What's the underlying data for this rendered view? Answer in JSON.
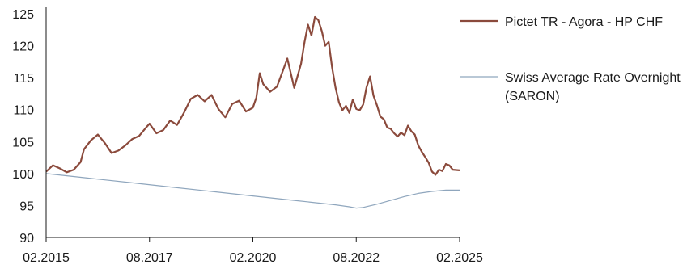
{
  "chart_data": {
    "type": "line",
    "x_axis": {
      "tick_labels": [
        "02.2015",
        "08.2017",
        "02.2020",
        "08.2022",
        "02.2025"
      ],
      "tick_dates": [
        "2015-02",
        "2017-08",
        "2020-02",
        "2022-08",
        "2025-02"
      ],
      "range": [
        "2015-02",
        "2025-02"
      ]
    },
    "y_axis": {
      "ticks": [
        90,
        95,
        100,
        105,
        110,
        115,
        120,
        125
      ],
      "ylim": [
        90,
        125
      ]
    },
    "grid": false,
    "legend_position": "right",
    "series": [
      {
        "name": "Pictet TR - Agora - HP CHF",
        "color": "#8B4A3C",
        "points": [
          [
            "2015-02",
            100.3
          ],
          [
            "2015-04",
            101.3
          ],
          [
            "2015-06",
            100.8
          ],
          [
            "2015-08",
            100.2
          ],
          [
            "2015-10",
            100.6
          ],
          [
            "2015-12",
            101.8
          ],
          [
            "2016-01",
            103.8
          ],
          [
            "2016-03",
            105.2
          ],
          [
            "2016-05",
            106.1
          ],
          [
            "2016-07",
            104.8
          ],
          [
            "2016-09",
            103.2
          ],
          [
            "2016-11",
            103.6
          ],
          [
            "2017-01",
            104.4
          ],
          [
            "2017-03",
            105.4
          ],
          [
            "2017-05",
            105.9
          ],
          [
            "2017-07",
            107.2
          ],
          [
            "2017-08",
            107.8
          ],
          [
            "2017-10",
            106.3
          ],
          [
            "2017-12",
            106.8
          ],
          [
            "2018-02",
            108.3
          ],
          [
            "2018-04",
            107.6
          ],
          [
            "2018-06",
            109.5
          ],
          [
            "2018-08",
            111.7
          ],
          [
            "2018-10",
            112.3
          ],
          [
            "2018-12",
            111.3
          ],
          [
            "2019-02",
            112.3
          ],
          [
            "2019-04",
            110.1
          ],
          [
            "2019-06",
            108.8
          ],
          [
            "2019-08",
            110.9
          ],
          [
            "2019-10",
            111.4
          ],
          [
            "2019-12",
            109.7
          ],
          [
            "2020-02",
            110.3
          ],
          [
            "2020-03",
            111.9
          ],
          [
            "2020-04",
            115.7
          ],
          [
            "2020-05",
            114.0
          ],
          [
            "2020-07",
            112.8
          ],
          [
            "2020-09",
            113.6
          ],
          [
            "2020-11",
            116.5
          ],
          [
            "2020-12",
            118.0
          ],
          [
            "2021-02",
            113.4
          ],
          [
            "2021-04",
            117.2
          ],
          [
            "2021-05",
            120.6
          ],
          [
            "2021-06",
            123.3
          ],
          [
            "2021-07",
            121.6
          ],
          [
            "2021-08",
            124.5
          ],
          [
            "2021-09",
            124.0
          ],
          [
            "2021-10",
            122.3
          ],
          [
            "2021-11",
            120.0
          ],
          [
            "2021-12",
            120.6
          ],
          [
            "2022-01",
            116.6
          ],
          [
            "2022-02",
            113.4
          ],
          [
            "2022-03",
            111.1
          ],
          [
            "2022-04",
            109.9
          ],
          [
            "2022-05",
            110.6
          ],
          [
            "2022-06",
            109.5
          ],
          [
            "2022-07",
            111.6
          ],
          [
            "2022-08",
            110.1
          ],
          [
            "2022-09",
            109.9
          ],
          [
            "2022-10",
            110.8
          ],
          [
            "2022-11",
            113.5
          ],
          [
            "2022-12",
            115.2
          ],
          [
            "2023-01",
            112.2
          ],
          [
            "2023-02",
            110.7
          ],
          [
            "2023-03",
            108.9
          ],
          [
            "2023-04",
            108.5
          ],
          [
            "2023-05",
            107.2
          ],
          [
            "2023-06",
            107.0
          ],
          [
            "2023-07",
            106.3
          ],
          [
            "2023-08",
            105.8
          ],
          [
            "2023-09",
            106.4
          ],
          [
            "2023-10",
            106.0
          ],
          [
            "2023-11",
            107.5
          ],
          [
            "2023-12",
            106.6
          ],
          [
            "2024-01",
            106.1
          ],
          [
            "2024-02",
            104.4
          ],
          [
            "2024-03",
            103.4
          ],
          [
            "2024-04",
            102.6
          ],
          [
            "2024-05",
            101.7
          ],
          [
            "2024-06",
            100.3
          ],
          [
            "2024-07",
            99.8
          ],
          [
            "2024-08",
            100.6
          ],
          [
            "2024-09",
            100.4
          ],
          [
            "2024-10",
            101.5
          ],
          [
            "2024-11",
            101.3
          ],
          [
            "2024-12",
            100.6
          ],
          [
            "2025-02",
            100.5
          ]
        ]
      },
      {
        "name": "Swiss Average Rate Overnight (SARON)",
        "color": "#8FA6BD",
        "points": [
          [
            "2015-02",
            100.0
          ],
          [
            "2016-02",
            99.3
          ],
          [
            "2017-02",
            98.6
          ],
          [
            "2018-02",
            97.9
          ],
          [
            "2019-02",
            97.2
          ],
          [
            "2020-02",
            96.5
          ],
          [
            "2021-02",
            95.8
          ],
          [
            "2022-02",
            95.1
          ],
          [
            "2022-06",
            94.8
          ],
          [
            "2022-08",
            94.6
          ],
          [
            "2022-10",
            94.7
          ],
          [
            "2023-02",
            95.2
          ],
          [
            "2023-06",
            95.8
          ],
          [
            "2023-10",
            96.4
          ],
          [
            "2024-02",
            96.9
          ],
          [
            "2024-06",
            97.2
          ],
          [
            "2024-10",
            97.4
          ],
          [
            "2025-02",
            97.4
          ]
        ]
      }
    ],
    "legend": {
      "entries": [
        {
          "lines": [
            "Pictet TR - Agora - HP CHF"
          ]
        },
        {
          "lines": [
            "Swiss Average Rate Overnight",
            "(SARON)"
          ]
        }
      ]
    }
  }
}
